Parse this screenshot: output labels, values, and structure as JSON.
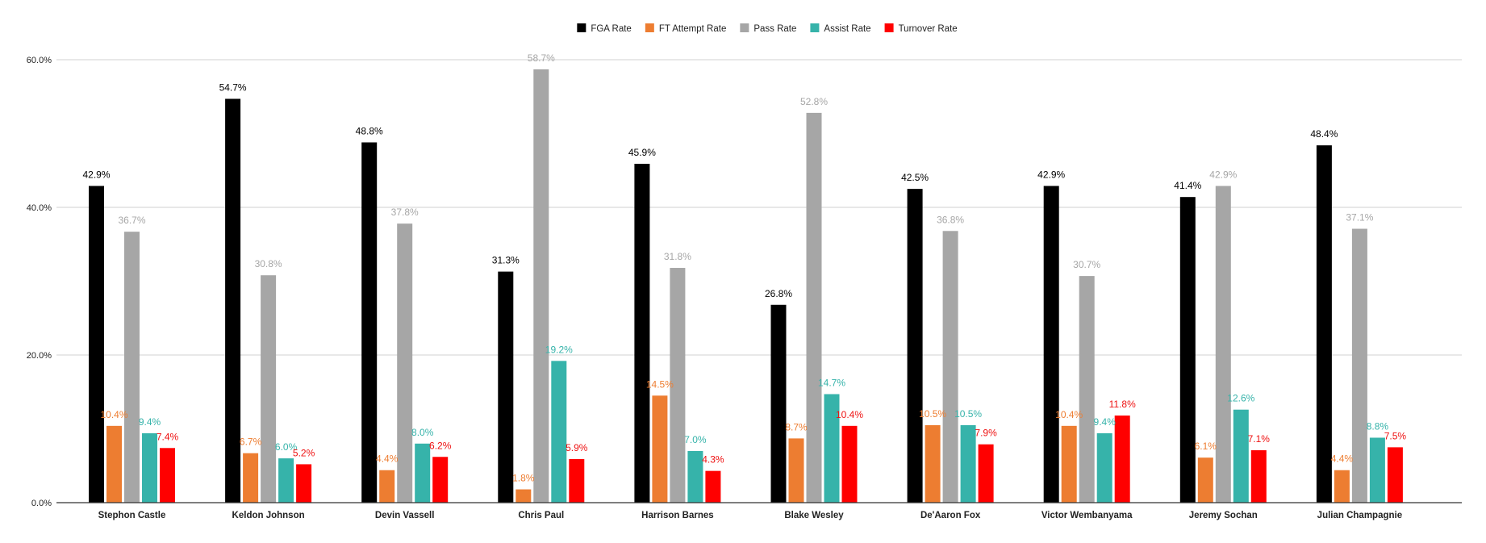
{
  "chart_data": {
    "type": "bar",
    "categories": [
      "Stephon Castle",
      "Keldon Johnson",
      "Devin Vassell",
      "Chris Paul",
      "Harrison Barnes",
      "Blake Wesley",
      "De'Aaron Fox",
      "Victor Wembanyama",
      "Jeremy Sochan",
      "Julian Champagnie"
    ],
    "series": [
      {
        "name": "FGA Rate",
        "color": "#000000",
        "label_color": "#000000",
        "values": [
          42.9,
          54.7,
          48.8,
          31.3,
          45.9,
          26.8,
          42.5,
          42.9,
          41.4,
          48.4
        ],
        "labels": [
          "42.9%",
          "54.7%",
          "48.8%",
          "31.3%",
          "45.9%",
          "26.8%",
          "42.5%",
          "42.9%",
          "41.4%",
          "48.4%"
        ]
      },
      {
        "name": "FT Attempt Rate",
        "color": "#ed7d31",
        "label_color": "#ed7d31",
        "values": [
          10.4,
          6.7,
          4.4,
          1.8,
          14.5,
          8.7,
          10.5,
          10.4,
          6.1,
          4.4
        ],
        "labels": [
          "10.4%",
          "6.7%",
          "4.4%",
          "1.8%",
          "14.5%",
          "8.7%",
          "10.5%",
          "10.4%",
          "6.1%",
          "4.4%"
        ]
      },
      {
        "name": "Pass Rate",
        "color": "#a6a6a6",
        "label_color": "#a6a6a6",
        "values": [
          36.7,
          30.8,
          37.8,
          58.7,
          31.8,
          52.8,
          36.8,
          30.7,
          42.9,
          37.1
        ],
        "labels": [
          "36.7%",
          "30.8%",
          "37.8%",
          "58.7%",
          "31.8%",
          "52.8%",
          "36.8%",
          "30.7%",
          "42.9%",
          "37.1%"
        ]
      },
      {
        "name": "Assist Rate",
        "color": "#36b3aa",
        "label_color": "#36b3aa",
        "values": [
          9.4,
          6.0,
          8.0,
          19.2,
          7.0,
          14.7,
          10.5,
          9.4,
          12.6,
          8.8
        ],
        "labels": [
          "9.4%",
          "6.0%",
          "8.0%",
          "19.2%",
          "7.0%",
          "14.7%",
          "10.5%",
          "9.4%",
          "12.6%",
          "8.8%"
        ]
      },
      {
        "name": "Turnover Rate",
        "color": "#ff0000",
        "label_color": "#ee1111",
        "values": [
          7.4,
          5.2,
          6.2,
          5.9,
          4.3,
          10.4,
          7.9,
          11.8,
          7.1,
          7.5
        ],
        "labels": [
          "7.4%",
          "5.2%",
          "6.2%",
          "5.9%",
          "4.3%",
          "10.4%",
          "7.9%",
          "11.8%",
          "7.1%",
          "7.5%"
        ]
      }
    ],
    "y_ticks": [
      0,
      20,
      40,
      60
    ],
    "y_tick_labels": [
      "0.0%",
      "20.0%",
      "40.0%",
      "60.0%"
    ],
    "ylim": [
      0,
      60
    ],
    "grid": true,
    "legend_position": "top-center",
    "title": "",
    "xlabel": "",
    "ylabel": ""
  }
}
